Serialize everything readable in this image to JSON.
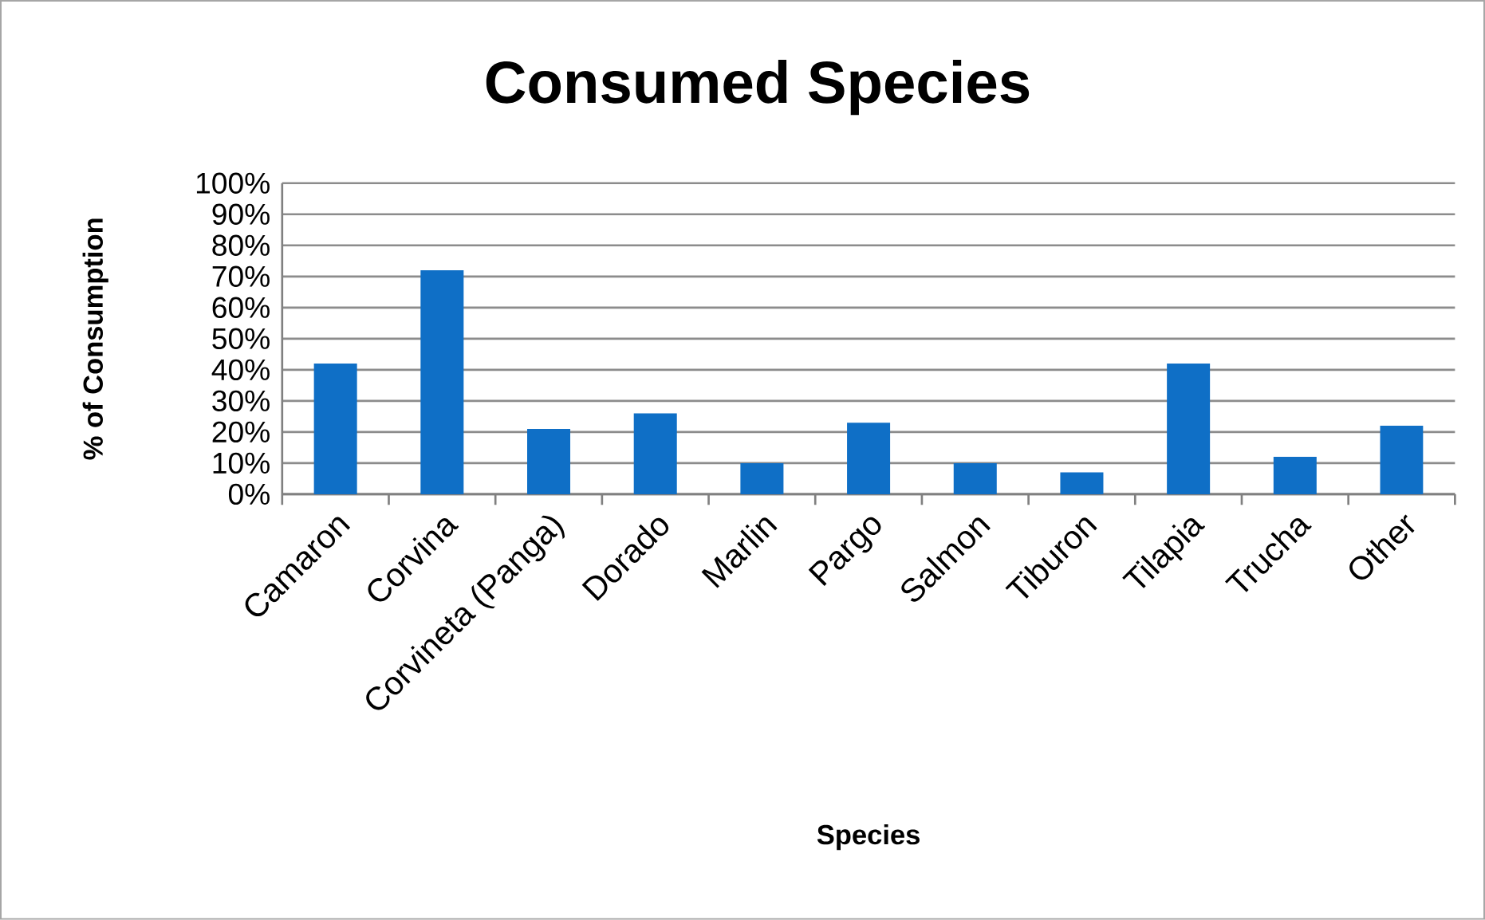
{
  "chart_data": {
    "type": "bar",
    "title": "Consumed Species",
    "xlabel": "Species",
    "ylabel": "% of Consumption",
    "categories": [
      "Camaron",
      "Corvina",
      "Corvineta (Panga)",
      "Dorado",
      "Marlin",
      "Pargo",
      "Salmon",
      "Tiburon",
      "Tilapia",
      "Trucha",
      "Other"
    ],
    "values": [
      42,
      72,
      21,
      26,
      10,
      23,
      10,
      7,
      42,
      12,
      22
    ],
    "color": "#0f6fc6",
    "ylim": [
      0,
      100
    ],
    "yticks": [
      {
        "value": 0,
        "label": "0%"
      },
      {
        "value": 10,
        "label": "10%"
      },
      {
        "value": 20,
        "label": "20%"
      },
      {
        "value": 30,
        "label": "30%"
      },
      {
        "value": 40,
        "label": "40%"
      },
      {
        "value": 50,
        "label": "50%"
      },
      {
        "value": 60,
        "label": "60%"
      },
      {
        "value": 70,
        "label": "70%"
      },
      {
        "value": 80,
        "label": "80%"
      },
      {
        "value": 90,
        "label": "90%"
      },
      {
        "value": 100,
        "label": "100%"
      }
    ],
    "grid": "y"
  }
}
